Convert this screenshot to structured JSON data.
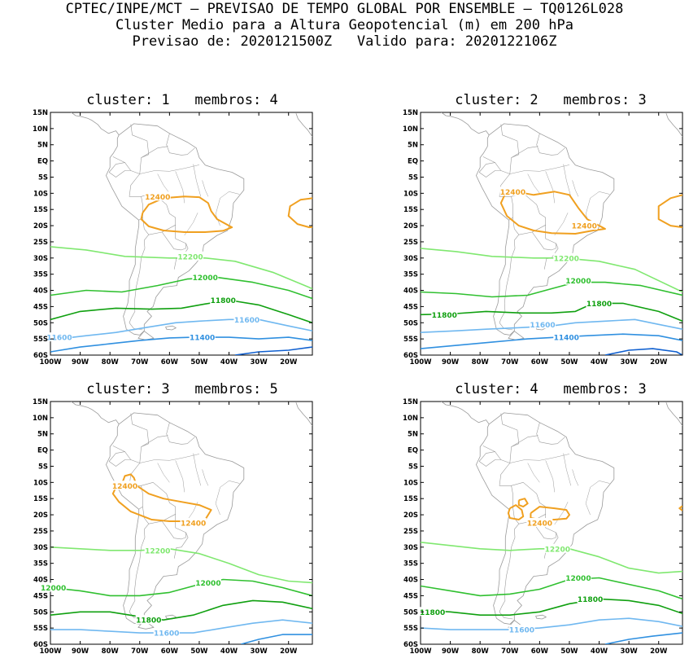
{
  "header": {
    "line1": "CPTEC/INPE/MCT – PREVISAO DE TEMPO GLOBAL POR ENSEMBLE – TQ0126L028",
    "line2": "Cluster Medio para a Altura Geopotencial (m) em 200 hPa",
    "line3": "Previsao de: 2020121500Z   Valido para: 2020122106Z"
  },
  "axes": {
    "lat_labels": [
      "15N",
      "10N",
      "5N",
      "EQ",
      "5S",
      "10S",
      "15S",
      "20S",
      "25S",
      "30S",
      "35S",
      "40S",
      "45S",
      "50S",
      "55S",
      "60S"
    ],
    "lon_labels": [
      "100W",
      "90W",
      "80W",
      "70W",
      "60W",
      "50W",
      "40W",
      "30W",
      "20W"
    ]
  },
  "colors": {
    "c12400": "#f0a020",
    "c12200": "#80e870",
    "c12000": "#30c030",
    "c11800": "#10a010",
    "c11600": "#70b8f0",
    "c11400": "#3090e0",
    "c11200": "#1060d0",
    "map": "#9a9a9a"
  },
  "panels": [
    {
      "title": "cluster: 1   membros: 4",
      "labels": [
        {
          "text": "12400",
          "lon": -64,
          "lat": -11,
          "cls": "c12400"
        },
        {
          "text": "12200",
          "lon": -53,
          "lat": -29.5,
          "cls": "c12200"
        },
        {
          "text": "12000",
          "lon": -48,
          "lat": -36,
          "cls": "c12000"
        },
        {
          "text": "11800",
          "lon": -42,
          "lat": -43,
          "cls": "c11800"
        },
        {
          "text": "11600",
          "lon": -34,
          "lat": -49,
          "cls": "c11600"
        },
        {
          "text": "11600",
          "lon": -97,
          "lat": -54.5,
          "cls": "c11600"
        },
        {
          "text": "11400",
          "lon": -49,
          "lat": -54.5,
          "cls": "c11400"
        }
      ]
    },
    {
      "title": "cluster: 2   membros: 3",
      "labels": [
        {
          "text": "12400",
          "lon": -69,
          "lat": -9.5,
          "cls": "c12400"
        },
        {
          "text": "12400",
          "lon": -45,
          "lat": -20,
          "cls": "c12400"
        },
        {
          "text": "12200",
          "lon": -51,
          "lat": -30,
          "cls": "c12200"
        },
        {
          "text": "12000",
          "lon": -47,
          "lat": -37,
          "cls": "c12000"
        },
        {
          "text": "11800",
          "lon": -40,
          "lat": -44,
          "cls": "c11800"
        },
        {
          "text": "11800",
          "lon": -92,
          "lat": -47.5,
          "cls": "c11800"
        },
        {
          "text": "11600",
          "lon": -59,
          "lat": -50.5,
          "cls": "c11600"
        },
        {
          "text": "11400",
          "lon": -51,
          "lat": -54.5,
          "cls": "c11400"
        }
      ]
    },
    {
      "title": "cluster: 3   membros: 5",
      "labels": [
        {
          "text": "12400",
          "lon": -75,
          "lat": -11,
          "cls": "c12400"
        },
        {
          "text": "12400",
          "lon": -52,
          "lat": -22.5,
          "cls": "c12400"
        },
        {
          "text": "12200",
          "lon": -64,
          "lat": -31,
          "cls": "c12200"
        },
        {
          "text": "12000",
          "lon": -99,
          "lat": -42.5,
          "cls": "c12000"
        },
        {
          "text": "12000",
          "lon": -47,
          "lat": -41,
          "cls": "c12000"
        },
        {
          "text": "11800",
          "lon": -67,
          "lat": -52.5,
          "cls": "c11800"
        },
        {
          "text": "11600",
          "lon": -61,
          "lat": -56.5,
          "cls": "c11600"
        }
      ]
    },
    {
      "title": "cluster: 4   membros: 3",
      "labels": [
        {
          "text": "12400",
          "lon": -60,
          "lat": -22.5,
          "cls": "c12400"
        },
        {
          "text": "12200",
          "lon": -54,
          "lat": -30.5,
          "cls": "c12200"
        },
        {
          "text": "12000",
          "lon": -47,
          "lat": -39.5,
          "cls": "c12000"
        },
        {
          "text": "11800",
          "lon": -43,
          "lat": -46,
          "cls": "c11800"
        },
        {
          "text": "11800",
          "lon": -96,
          "lat": -50,
          "cls": "c11800"
        },
        {
          "text": "11600",
          "lon": -66,
          "lat": -55.5,
          "cls": "c11600"
        }
      ]
    }
  ]
}
